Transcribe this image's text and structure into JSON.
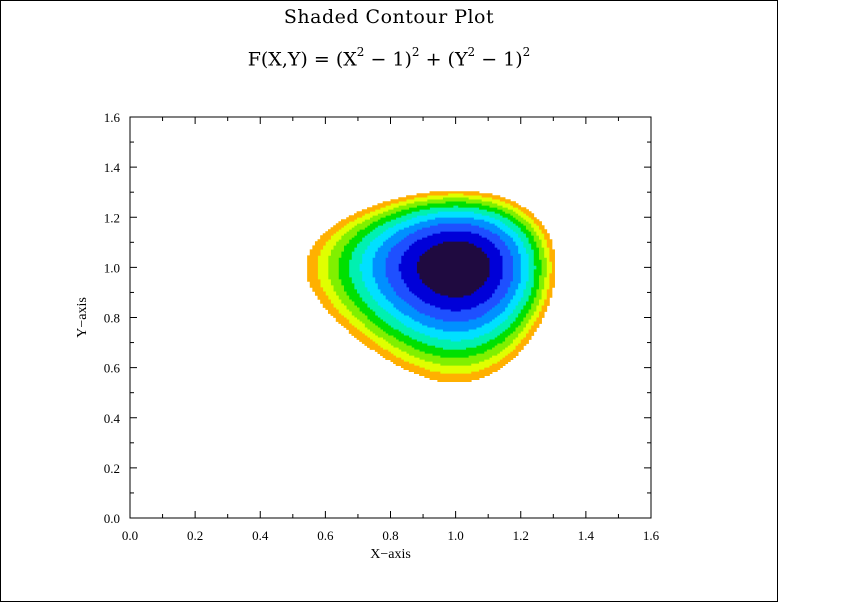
{
  "chart_data": {
    "type": "heatmap",
    "subtype": "filled-contour",
    "title": "Shaded Contour Plot",
    "formula": {
      "lhs": "F(X,Y) = (X",
      "sup1": "2",
      "mid1": " − 1)",
      "sup2": "2",
      "mid2": " + (Y",
      "sup3": "2",
      "mid3": " − 1)",
      "sup4": "2"
    },
    "xlabel": "X−axis",
    "ylabel": "Y−axis",
    "xlim": [
      0.0,
      1.6
    ],
    "ylim": [
      0.0,
      1.6
    ],
    "x_ticks": [
      "0.0",
      "0.2",
      "0.4",
      "0.6",
      "0.8",
      "1.0",
      "1.2",
      "1.4",
      "1.6"
    ],
    "y_ticks": [
      "0.0",
      "0.2",
      "0.4",
      "0.6",
      "0.8",
      "1.0",
      "1.2",
      "1.4",
      "1.6"
    ],
    "levels": [
      0.0,
      0.05,
      0.1,
      0.15,
      0.2,
      0.25,
      0.3,
      0.35,
      0.4,
      0.45,
      0.5
    ],
    "colors": [
      "#1f0a40",
      "#0000d8",
      "#1e50ff",
      "#0090ff",
      "#00e0ff",
      "#00f0b0",
      "#00e000",
      "#80f000",
      "#e0ff00",
      "#ffb000"
    ],
    "grid": false
  }
}
